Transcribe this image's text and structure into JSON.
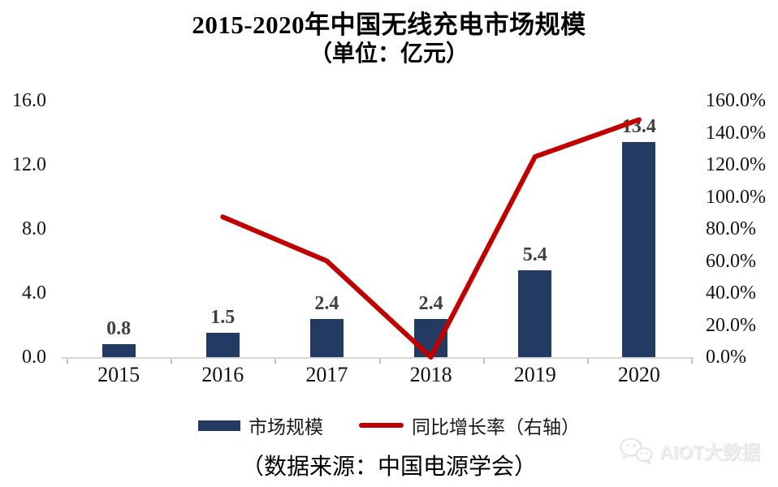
{
  "page": {
    "source_note": "（数据来源：中国电源学会）",
    "watermark_text": "AIOT大数据"
  },
  "chart_data": {
    "type": "combo-bar-line",
    "title": "2015-2020年中国无线充电市场规模",
    "subtitle": "（单位：亿元）",
    "categories": [
      "2015",
      "2016",
      "2017",
      "2018",
      "2019",
      "2020"
    ],
    "series": [
      {
        "name": "市场规模",
        "type": "bar",
        "axis": "left",
        "color": "#233A62",
        "values": [
          0.8,
          1.5,
          2.4,
          2.4,
          5.4,
          13.4
        ],
        "labels": [
          "0.8",
          "1.5",
          "2.4",
          "2.4",
          "5.4",
          "13.4"
        ]
      },
      {
        "name": "同比增长率（右轴）",
        "type": "line",
        "axis": "right",
        "color": "#C00000",
        "values": [
          null,
          87.5,
          60.0,
          0.0,
          125.0,
          148.1
        ]
      }
    ],
    "y_left": {
      "min": 0,
      "max": 16,
      "step": 4,
      "ticks": [
        "0.0",
        "4.0",
        "8.0",
        "12.0",
        "16.0"
      ]
    },
    "y_right": {
      "min": 0,
      "max": 160,
      "step": 20,
      "ticks": [
        "0.0%",
        "20.0%",
        "40.0%",
        "60.0%",
        "80.0%",
        "100.0%",
        "120.0%",
        "140.0%",
        "160.0%"
      ]
    },
    "grid": false,
    "legend_position": "bottom",
    "colors": {
      "axis_line": "#d7d7d7",
      "tick_mark": "#bfbfbf",
      "bar_label": "#3f3f3f"
    }
  }
}
